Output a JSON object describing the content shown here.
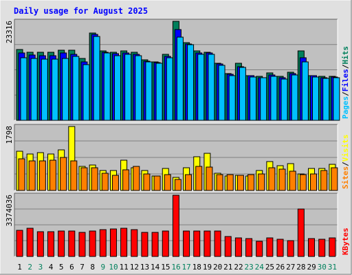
{
  "chart_data": [
    {
      "type": "bar",
      "panel": "hits",
      "title": "Daily usage for August 2025",
      "ymax_label": "23316",
      "ymax": 23316,
      "legend": [
        "Pages",
        "Files",
        "Hits"
      ],
      "legend_sep": "/",
      "categories": [
        "1",
        "2",
        "3",
        "4",
        "5",
        "6",
        "7",
        "8",
        "9",
        "10",
        "11",
        "12",
        "13",
        "14",
        "15",
        "16",
        "17",
        "18",
        "19",
        "20",
        "21",
        "22",
        "23",
        "24",
        "25",
        "26",
        "27",
        "28",
        "29",
        "30",
        "31"
      ],
      "series": [
        {
          "name": "Hits",
          "values": [
            16600,
            16000,
            16000,
            16000,
            16500,
            16500,
            14500,
            20500,
            16300,
            16000,
            16300,
            16000,
            14200,
            13800,
            15600,
            23316,
            18300,
            16300,
            16100,
            13500,
            11000,
            13500,
            10600,
            10300,
            11200,
            10300,
            11300,
            16300,
            10600,
            10300,
            10400
          ]
        },
        {
          "name": "Files",
          "values": [
            15800,
            15400,
            15300,
            15200,
            15800,
            15600,
            13800,
            20300,
            16000,
            15700,
            15800,
            15600,
            14000,
            13600,
            15100,
            21400,
            18000,
            15900,
            15800,
            13300,
            10900,
            12600,
            10500,
            10100,
            10700,
            10000,
            11000,
            14700,
            10500,
            10100,
            10200
          ]
        },
        {
          "name": "Pages",
          "values": [
            14800,
            14600,
            14400,
            14400,
            14600,
            15100,
            13100,
            19700,
            15800,
            15300,
            15600,
            15300,
            13800,
            13400,
            14800,
            19600,
            17800,
            15600,
            15500,
            13000,
            10500,
            12400,
            10200,
            10000,
            10300,
            9700,
            10700,
            13700,
            10200,
            9900,
            10000
          ]
        }
      ]
    },
    {
      "type": "bar",
      "panel": "visits",
      "ymax_label": "1798",
      "ymax": 1798,
      "legend": [
        "Sites",
        "Visits"
      ],
      "legend_sep": "/",
      "series": [
        {
          "name": "Visits",
          "values": [
            1110,
            1030,
            1060,
            1030,
            1140,
            1798,
            680,
            710,
            560,
            560,
            860,
            640,
            560,
            400,
            610,
            360,
            630,
            940,
            1040,
            480,
            400,
            420,
            410,
            570,
            820,
            700,
            760,
            460,
            620,
            610,
            740
          ]
        },
        {
          "name": "Sites",
          "values": [
            880,
            840,
            830,
            860,
            920,
            830,
            640,
            630,
            490,
            420,
            580,
            680,
            460,
            400,
            450,
            300,
            450,
            680,
            660,
            440,
            440,
            420,
            440,
            460,
            630,
            590,
            540,
            450,
            460,
            570,
            630
          ]
        }
      ]
    },
    {
      "type": "bar",
      "panel": "kbytes",
      "ymax_label": "3374036",
      "ymax": 3374036,
      "legend": [
        "KBytes"
      ],
      "series": [
        {
          "name": "KBytes",
          "values": [
            1450000,
            1540000,
            1380000,
            1350000,
            1390000,
            1390000,
            1320000,
            1420000,
            1480000,
            1530000,
            1560000,
            1480000,
            1330000,
            1330000,
            1390000,
            3374036,
            1420000,
            1420000,
            1390000,
            1400000,
            1090000,
            1030000,
            970000,
            850000,
            1010000,
            960000,
            870000,
            2600000,
            1000000,
            950000,
            1030000
          ]
        }
      ]
    }
  ],
  "colors": {
    "hits": "#00805c",
    "files": "#0000ff",
    "pages": "#00c0ff",
    "visits": "#ffff00",
    "sites": "#ff8000",
    "kbytes": "#ff0000",
    "title": "#0000ff",
    "day_weekday": "#000000",
    "day_weekend": "#00805c",
    "plot_bg": "#c0c0c0",
    "frame_bg": "#e0e0e0"
  },
  "weekend_days": [
    2,
    3,
    9,
    10,
    16,
    17,
    23,
    24,
    30,
    31
  ]
}
